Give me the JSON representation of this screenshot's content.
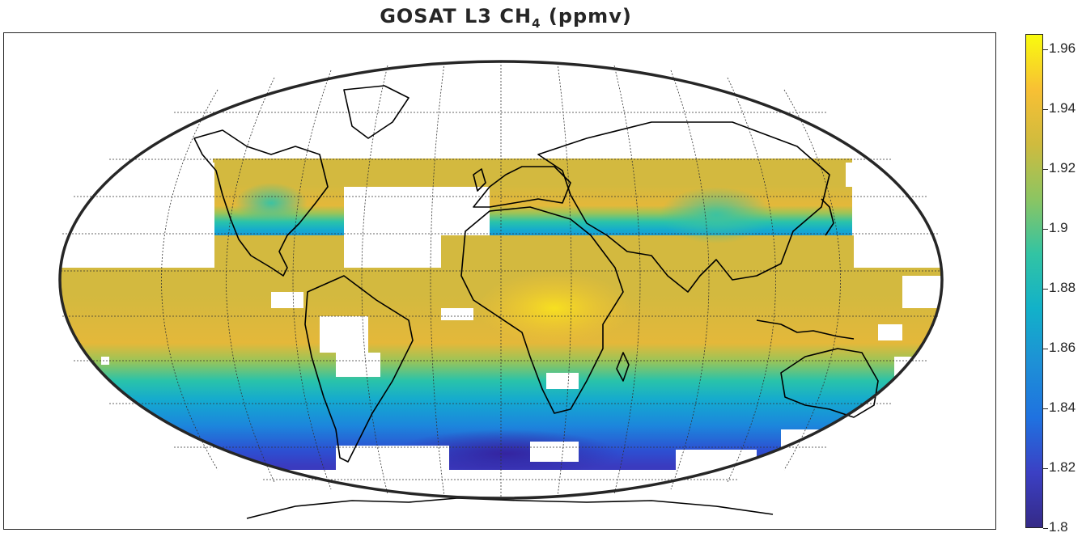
{
  "map": {
    "title_main": "GOSAT  L3  CH",
    "title_sub": "4",
    "title_unit": " (ppmv)",
    "projection": "Robinson",
    "variable": "XCH4",
    "frame_color": "#262626",
    "gap_color": "#ffffff"
  },
  "colorbar": {
    "min": 1.8,
    "max": 1.965,
    "ticks": [
      {
        "value": 1.96,
        "label": "1.96"
      },
      {
        "value": 1.94,
        "label": "1.94"
      },
      {
        "value": 1.92,
        "label": "1.92"
      },
      {
        "value": 1.9,
        "label": "1.9"
      },
      {
        "value": 1.88,
        "label": "1.88"
      },
      {
        "value": 1.86,
        "label": "1.86"
      },
      {
        "value": 1.84,
        "label": "1.84"
      },
      {
        "value": 1.82,
        "label": "1.82"
      },
      {
        "value": 1.8,
        "label": "1.8"
      }
    ],
    "colors": [
      "#352a87",
      "#3b40c4",
      "#1f72e0",
      "#1e90d6",
      "#12b1c9",
      "#32c4a3",
      "#8cc562",
      "#cfbb3e",
      "#f8c034",
      "#f9fb0e"
    ]
  }
}
